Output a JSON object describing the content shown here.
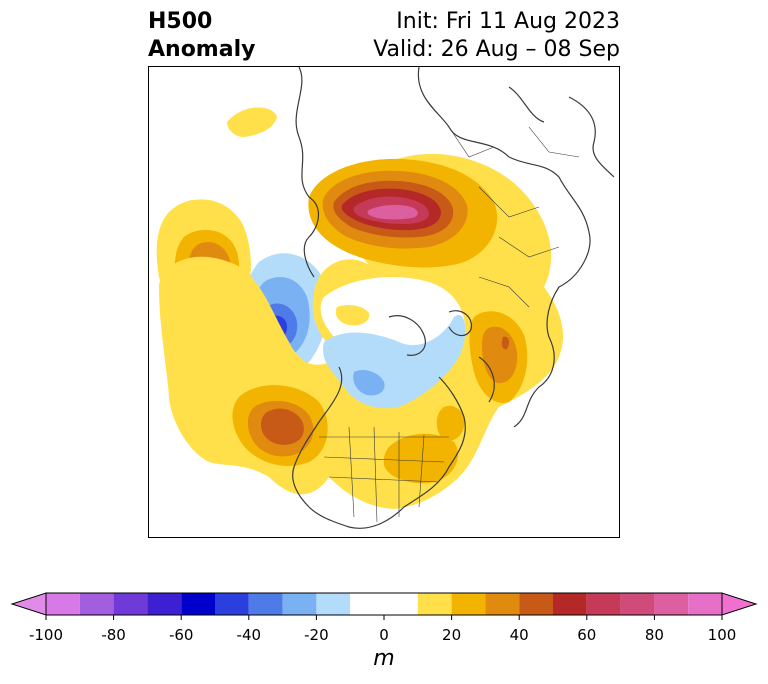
{
  "title": {
    "left_line1": "H500",
    "left_line2": "Anomaly",
    "right_line1": "Init: Fri 11 Aug 2023",
    "right_line2": "Valid: 26 Aug – 08 Sep"
  },
  "colorbar": {
    "unit": "m",
    "ticks": [
      "-100",
      "-80",
      "-60",
      "-40",
      "-20",
      "0",
      "20",
      "40",
      "60",
      "80",
      "100"
    ],
    "tick_values": [
      -100,
      -80,
      -60,
      -40,
      -20,
      0,
      20,
      40,
      60,
      80,
      100
    ],
    "levels": [
      -100,
      -90,
      -80,
      -70,
      -60,
      -50,
      -40,
      -30,
      -20,
      -10,
      10,
      20,
      30,
      40,
      50,
      60,
      70,
      80,
      90,
      100
    ],
    "colors": [
      "#d779e6",
      "#a35ee0",
      "#6f3ad8",
      "#3c20d2",
      "#0000cc",
      "#2a3fde",
      "#4f7be8",
      "#79b1f2",
      "#b3dcfa",
      "#ffffff",
      "#ffe04a",
      "#f2b400",
      "#e08a10",
      "#c85a18",
      "#b42828",
      "#c43a58",
      "#d04a7a",
      "#dc5fa0",
      "#e670c8"
    ],
    "extend_low_color": "#e08be8",
    "extend_high_color": "#f070d0"
  },
  "map": {
    "projection": "north-polar-stereographic",
    "features": [
      "continent-outlines",
      "country-borders",
      "us-state-borders"
    ]
  }
}
